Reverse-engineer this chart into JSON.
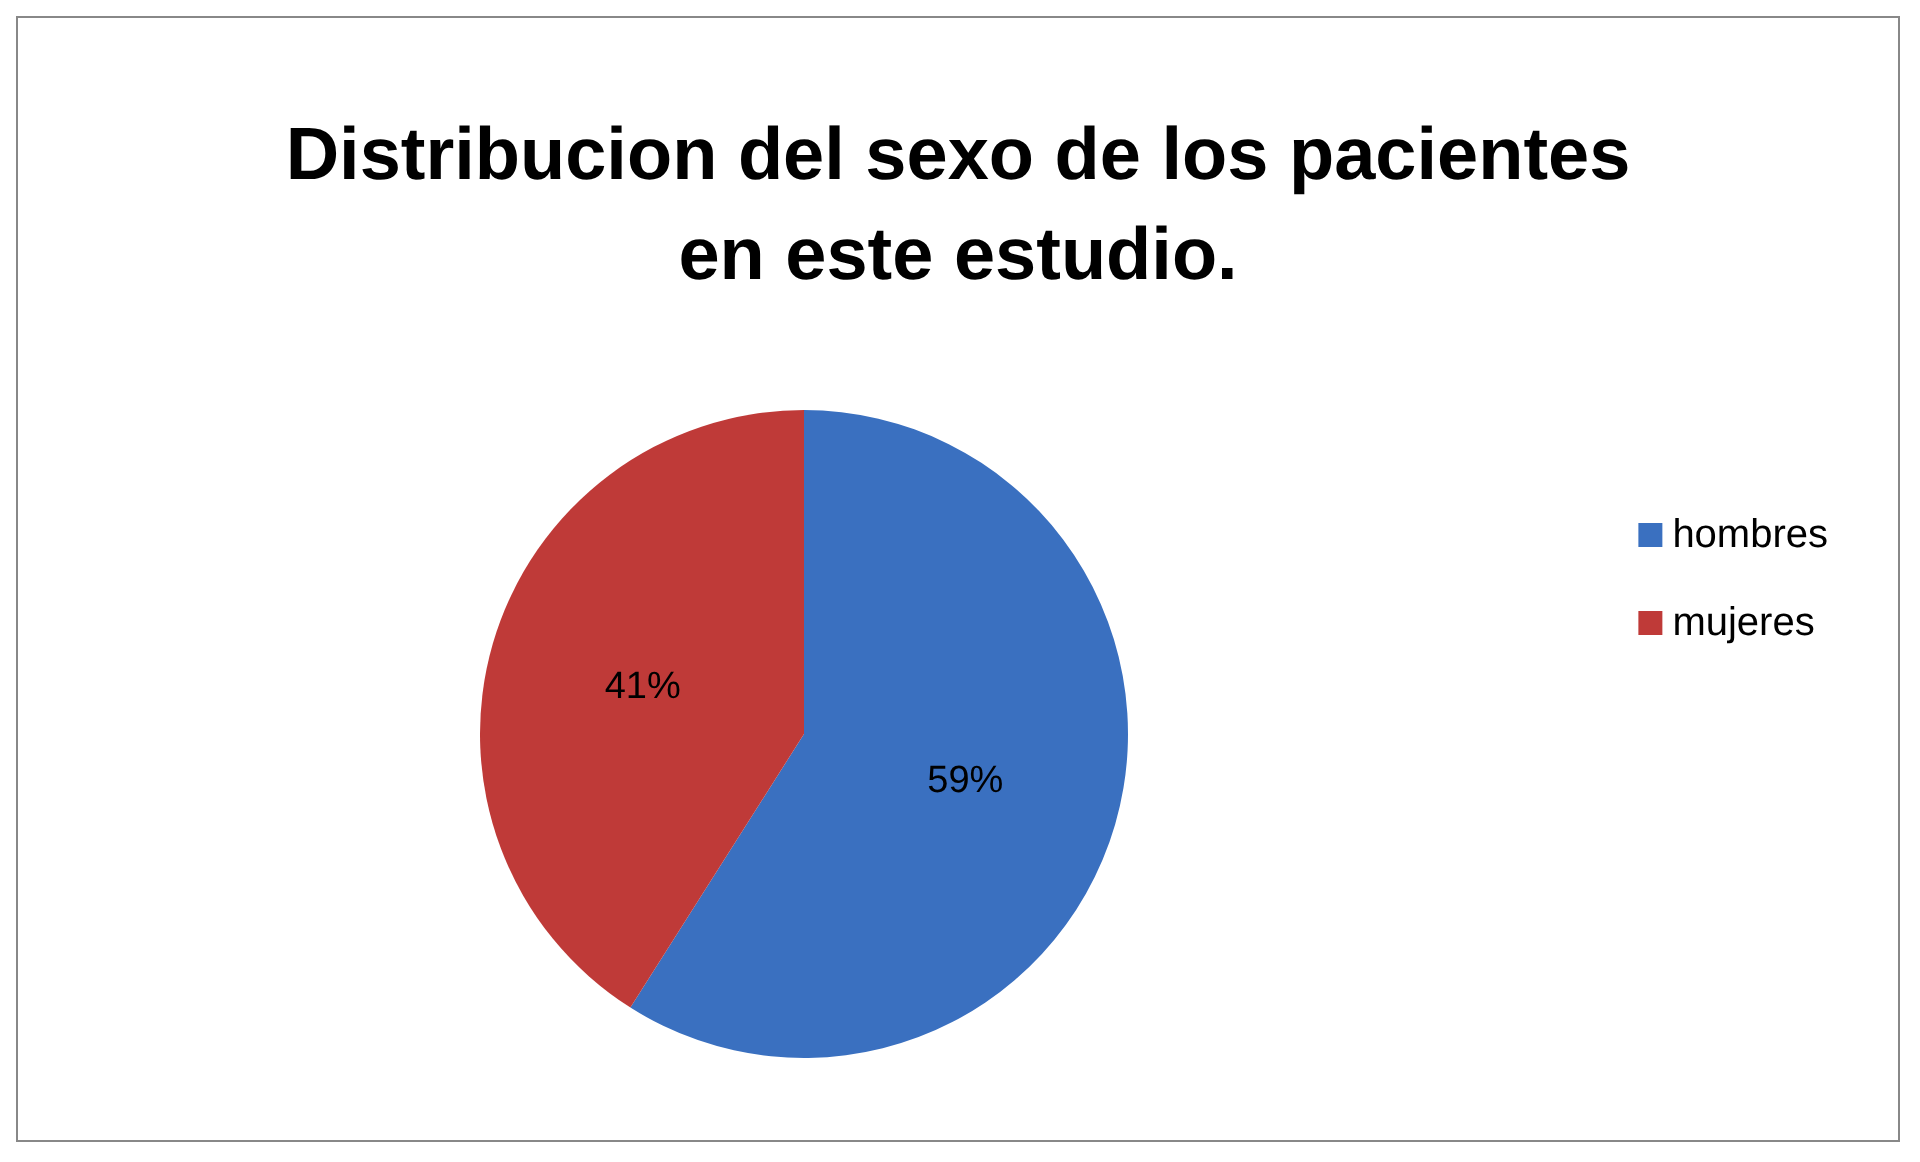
{
  "chart_data": {
    "type": "pie",
    "title": "Distribucion del sexo de los pacientes\nen este estudio.",
    "categories": [
      "hombres",
      "mujeres"
    ],
    "values": [
      59,
      41
    ],
    "colors": [
      "#3a70c0",
      "#bf3a38"
    ],
    "value_labels": [
      "59%",
      "41%"
    ],
    "legend": "right"
  }
}
